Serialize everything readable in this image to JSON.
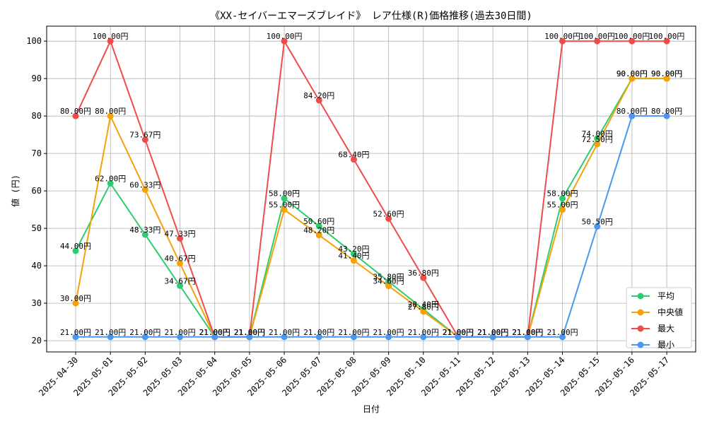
{
  "chart_data": {
    "type": "line",
    "title": "《XX-セイバーエマーズブレイド》 レア仕様(R)価格推移(過去30日間)",
    "xlabel": "日付",
    "ylabel": "値 (円)",
    "ylim": [
      17,
      104
    ],
    "yticks": [
      20,
      30,
      40,
      50,
      60,
      70,
      80,
      90,
      100
    ],
    "grid": true,
    "legend_position": "bottom-right",
    "value_suffix": "円",
    "categories": [
      "2025-04-30",
      "2025-05-01",
      "2025-05-02",
      "2025-05-03",
      "2025-05-04",
      "2025-05-05",
      "2025-05-06",
      "2025-05-07",
      "2025-05-08",
      "2025-05-09",
      "2025-05-10",
      "2025-05-11",
      "2025-05-12",
      "2025-05-13",
      "2025-05-14",
      "2025-05-15",
      "2025-05-16",
      "2025-05-17"
    ],
    "series": [
      {
        "name": "平均",
        "color": "#2ecc71",
        "values": [
          44.0,
          62.0,
          48.33,
          34.67,
          21.0,
          21.0,
          58.0,
          50.6,
          43.2,
          35.8,
          28.4,
          21.0,
          21.0,
          21.0,
          58.0,
          74.0,
          90.0,
          90.0
        ]
      },
      {
        "name": "中央値",
        "color": "#f5a10a",
        "values": [
          30.0,
          80.0,
          60.33,
          40.67,
          21.0,
          21.0,
          55.0,
          48.2,
          41.4,
          34.6,
          27.8,
          21.0,
          21.0,
          21.0,
          55.0,
          72.5,
          90.0,
          90.0
        ]
      },
      {
        "name": "最大",
        "color": "#ef4b4b",
        "values": [
          80.0,
          100.0,
          73.67,
          47.33,
          21.0,
          21.0,
          100.0,
          84.2,
          68.4,
          52.6,
          36.8,
          21.0,
          21.0,
          21.0,
          100.0,
          100.0,
          100.0,
          100.0
        ]
      },
      {
        "name": "最小",
        "color": "#4a97f0",
        "values": [
          21.0,
          21.0,
          21.0,
          21.0,
          21.0,
          21.0,
          21.0,
          21.0,
          21.0,
          21.0,
          21.0,
          21.0,
          21.0,
          21.0,
          21.0,
          50.5,
          80.0,
          80.0
        ]
      }
    ]
  }
}
